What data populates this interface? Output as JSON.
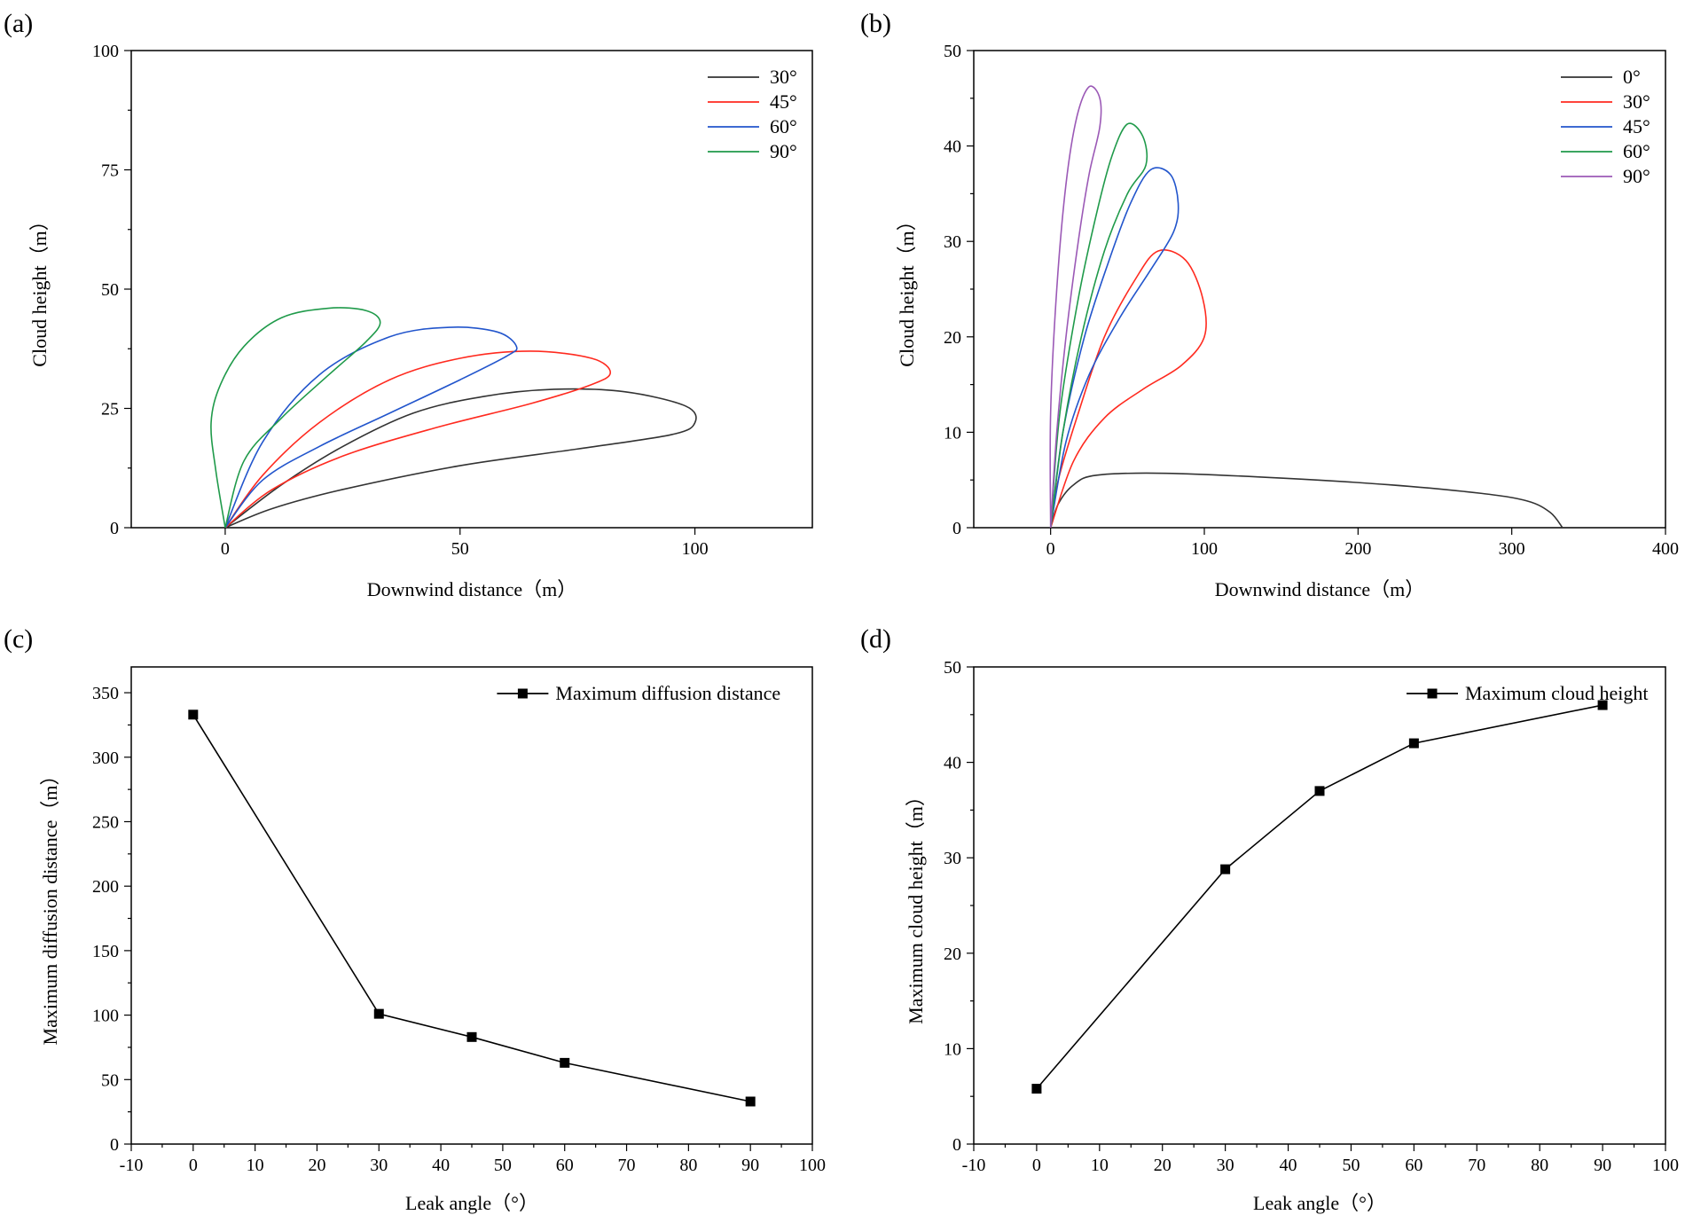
{
  "chart_data": [
    {
      "panel": "(a)",
      "type": "line",
      "xlabel": "Downwind distance（m）",
      "ylabel": "Cloud height（m）",
      "xlim": [
        -20,
        125
      ],
      "ylim": [
        0,
        100
      ],
      "xticks": [
        0,
        50,
        100
      ],
      "yticks": [
        0,
        25,
        50,
        75,
        100
      ],
      "legend": "top-right",
      "series": [
        {
          "name": "30°",
          "color": "#333333",
          "points": [
            [
              0,
              0
            ],
            [
              10,
              4
            ],
            [
              25,
              8
            ],
            [
              50,
              13
            ],
            [
              75,
              16.5
            ],
            [
              95,
              19.5
            ],
            [
              100,
              22
            ],
            [
              98,
              25.5
            ],
            [
              85,
              28.5
            ],
            [
              70,
              29
            ],
            [
              55,
              27.5
            ],
            [
              40,
              24
            ],
            [
              25,
              17
            ],
            [
              12,
              9
            ],
            [
              0,
              0
            ]
          ]
        },
        {
          "name": "45°",
          "color": "#ff2a1f",
          "points": [
            [
              0,
              0
            ],
            [
              10,
              8
            ],
            [
              25,
              15
            ],
            [
              45,
              21
            ],
            [
              65,
              26
            ],
            [
              78,
              30
            ],
            [
              82,
              32.5
            ],
            [
              78,
              35.5
            ],
            [
              65,
              37
            ],
            [
              50,
              35.5
            ],
            [
              35,
              31
            ],
            [
              20,
              22
            ],
            [
              8,
              11
            ],
            [
              0,
              0
            ]
          ]
        },
        {
          "name": "60°",
          "color": "#2255cc",
          "points": [
            [
              0,
              0
            ],
            [
              8,
              10
            ],
            [
              20,
              17
            ],
            [
              35,
              24
            ],
            [
              50,
              31
            ],
            [
              60,
              36
            ],
            [
              62,
              38
            ],
            [
              58,
              41
            ],
            [
              48,
              42
            ],
            [
              35,
              40
            ],
            [
              20,
              32
            ],
            [
              8,
              18
            ],
            [
              0,
              0
            ]
          ]
        },
        {
          "name": "90°",
          "color": "#1f9a4a",
          "points": [
            [
              0,
              0
            ],
            [
              4,
              14
            ],
            [
              12,
              23
            ],
            [
              22,
              32
            ],
            [
              30,
              39
            ],
            [
              33,
              43
            ],
            [
              30,
              45.5
            ],
            [
              22,
              46
            ],
            [
              12,
              44
            ],
            [
              4,
              38
            ],
            [
              -1,
              30
            ],
            [
              -3,
              22
            ],
            [
              -2,
              12
            ],
            [
              0,
              0
            ]
          ]
        }
      ]
    },
    {
      "panel": "(b)",
      "type": "line",
      "xlabel": "Downwind distance（m）",
      "ylabel": "Cloud height（m）",
      "xlim": [
        -50,
        400
      ],
      "ylim": [
        0,
        50
      ],
      "xticks": [
        0,
        100,
        200,
        300,
        400
      ],
      "yticks": [
        0,
        10,
        20,
        30,
        40,
        50
      ],
      "legend": "top-right",
      "series": [
        {
          "name": "0°",
          "color": "#333333",
          "points": [
            [
              0,
              0
            ],
            [
              5,
              2.5
            ],
            [
              15,
              4.5
            ],
            [
              30,
              5.5
            ],
            [
              75,
              5.7
            ],
            [
              150,
              5.2
            ],
            [
              220,
              4.5
            ],
            [
              280,
              3.6
            ],
            [
              310,
              2.8
            ],
            [
              325,
              1.6
            ],
            [
              333,
              0
            ]
          ]
        },
        {
          "name": "30°",
          "color": "#ff2a1f",
          "points": [
            [
              0,
              0
            ],
            [
              15,
              7
            ],
            [
              35,
              11.5
            ],
            [
              60,
              14.5
            ],
            [
              85,
              17
            ],
            [
              100,
              20
            ],
            [
              99,
              24
            ],
            [
              88,
              28
            ],
            [
              70,
              29
            ],
            [
              55,
              26
            ],
            [
              35,
              20
            ],
            [
              18,
              12
            ],
            [
              5,
              5
            ],
            [
              0,
              0
            ]
          ]
        },
        {
          "name": "45°",
          "color": "#2255cc",
          "points": [
            [
              0,
              0
            ],
            [
              10,
              9
            ],
            [
              25,
              16
            ],
            [
              45,
              22
            ],
            [
              65,
              27
            ],
            [
              80,
              31
            ],
            [
              83,
              34
            ],
            [
              78,
              37
            ],
            [
              65,
              37.5
            ],
            [
              52,
              34
            ],
            [
              38,
              28
            ],
            [
              22,
              20
            ],
            [
              8,
              10
            ],
            [
              0,
              0
            ]
          ]
        },
        {
          "name": "60°",
          "color": "#1f9a4a",
          "points": [
            [
              0,
              0
            ],
            [
              8,
              10
            ],
            [
              20,
              20
            ],
            [
              35,
              29
            ],
            [
              50,
              35
            ],
            [
              62,
              38
            ],
            [
              60,
              41
            ],
            [
              50,
              42.3
            ],
            [
              40,
              39
            ],
            [
              30,
              33
            ],
            [
              18,
              24
            ],
            [
              6,
              12
            ],
            [
              0,
              0
            ]
          ]
        },
        {
          "name": "90°",
          "color": "#9b59b6",
          "points": [
            [
              0,
              0
            ],
            [
              4,
              10
            ],
            [
              10,
              20
            ],
            [
              18,
              30
            ],
            [
              25,
              37
            ],
            [
              32,
              42
            ],
            [
              32,
              45
            ],
            [
              25,
              46.2
            ],
            [
              17,
              43
            ],
            [
              10,
              36
            ],
            [
              4,
              25
            ],
            [
              0,
              12
            ],
            [
              0,
              0
            ]
          ]
        }
      ]
    },
    {
      "panel": "(c)",
      "type": "line",
      "xlabel": "Leak angle（°）",
      "ylabel": "Maximum diffusion distance（m）",
      "xlim": [
        -10,
        100
      ],
      "ylim": [
        0,
        370
      ],
      "xticks": [
        -10,
        0,
        10,
        20,
        30,
        40,
        50,
        60,
        70,
        80,
        90,
        100
      ],
      "yticks": [
        0,
        50,
        100,
        150,
        200,
        250,
        300,
        350
      ],
      "legend": "top-right",
      "series": [
        {
          "name": "Maximum diffusion distance",
          "color": "#000000",
          "x": [
            0,
            30,
            45,
            60,
            90
          ],
          "values": [
            333,
            101,
            83,
            63,
            33
          ]
        }
      ]
    },
    {
      "panel": "(d)",
      "type": "line",
      "xlabel": "Leak angle（°）",
      "ylabel": "Maximum cloud height（m）",
      "xlim": [
        -10,
        100
      ],
      "ylim": [
        0,
        50
      ],
      "xticks": [
        -10,
        0,
        10,
        20,
        30,
        40,
        50,
        60,
        70,
        80,
        90,
        100
      ],
      "yticks": [
        0,
        10,
        20,
        30,
        40,
        50
      ],
      "legend": "top-right",
      "series": [
        {
          "name": "Maximum cloud height",
          "color": "#000000",
          "x": [
            0,
            30,
            45,
            60,
            90
          ],
          "values": [
            5.8,
            28.8,
            37,
            42,
            46
          ]
        }
      ]
    }
  ]
}
